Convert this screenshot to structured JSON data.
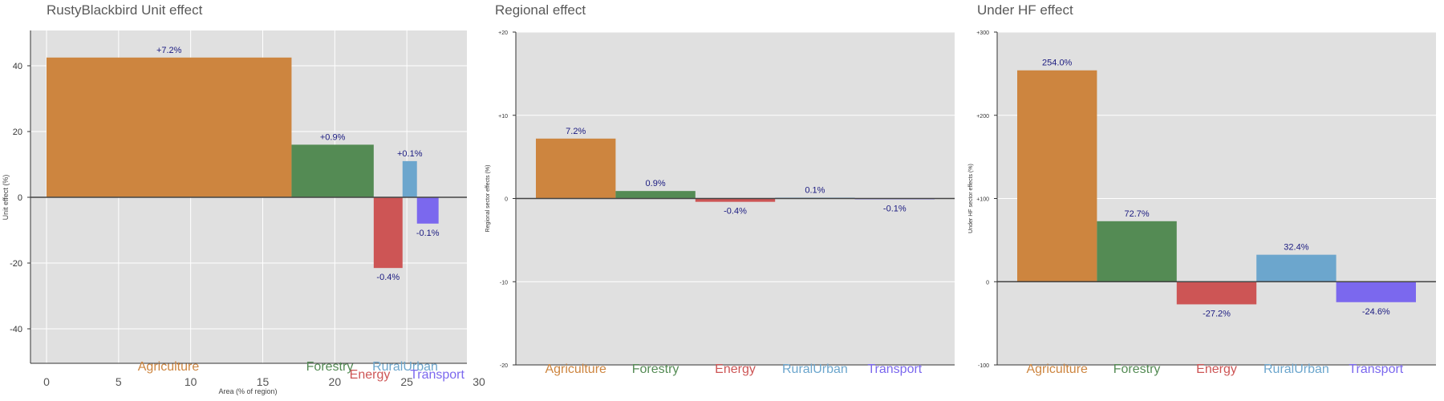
{
  "chart_data": [
    {
      "type": "bar",
      "title": "RustyBlackbird Unit effect",
      "xlabel": "Area (% of region)",
      "ylabel": "Unit effect (%)",
      "xlim": [
        -1,
        30
      ],
      "ylim": [
        -50,
        50
      ],
      "xticks": [
        0,
        5,
        10,
        15,
        20,
        25,
        30
      ],
      "yticks": [
        40,
        20,
        0,
        -20,
        -40
      ],
      "grid": true,
      "bars": [
        {
          "category": "Agriculture",
          "x0": 0,
          "x1": 17,
          "value": 42.5,
          "label": "+7.2%",
          "color": "#cd853f"
        },
        {
          "category": "Forestry",
          "x0": 17,
          "x1": 22.7,
          "value": 16,
          "label": "+0.9%",
          "color": "#548b54"
        },
        {
          "category": "Energy",
          "x0": 22.7,
          "x1": 24.7,
          "value": -21.5,
          "label": "-0.4%",
          "color": "#cd5555"
        },
        {
          "category": "RuralUrban",
          "x0": 24.7,
          "x1": 25.7,
          "value": 11,
          "label": "+0.1%",
          "color": "#6ca6cd"
        },
        {
          "category": "Transport",
          "x0": 25.7,
          "x1": 27.2,
          "value": -8,
          "label": "-0.1%",
          "color": "#7b68ee"
        }
      ]
    },
    {
      "type": "bar",
      "title": "Regional effect",
      "ylabel": "Regional sector effects (%)",
      "ylim": [
        -20,
        20
      ],
      "yticks": [
        "+20",
        "+10",
        "0",
        "-10",
        "-20"
      ],
      "grid": true,
      "categories": [
        "Agriculture",
        "Forestry",
        "Energy",
        "RuralUrban",
        "Transport"
      ],
      "values": [
        7.2,
        0.9,
        -0.4,
        0.1,
        -0.1
      ],
      "labels": [
        "7.2%",
        "0.9%",
        "-0.4%",
        "0.1%",
        "-0.1%"
      ],
      "colors": [
        "#cd853f",
        "#548b54",
        "#cd5555",
        "#6ca6cd",
        "#7b68ee"
      ]
    },
    {
      "type": "bar",
      "title": "Under HF effect",
      "ylabel": "Under HF sector effects (%)",
      "ylim": [
        -100,
        300
      ],
      "yticks": [
        "+300",
        "+200",
        "+100",
        "0",
        "-100"
      ],
      "grid": true,
      "categories": [
        "Agriculture",
        "Forestry",
        "Energy",
        "RuralUrban",
        "Transport"
      ],
      "values": [
        254.0,
        72.7,
        -27.2,
        32.4,
        -24.6
      ],
      "labels": [
        "254.0%",
        "72.7%",
        "-27.2%",
        "32.4%",
        "-24.6%"
      ],
      "colors": [
        "#cd853f",
        "#548b54",
        "#cd5555",
        "#6ca6cd",
        "#7b68ee"
      ]
    }
  ]
}
